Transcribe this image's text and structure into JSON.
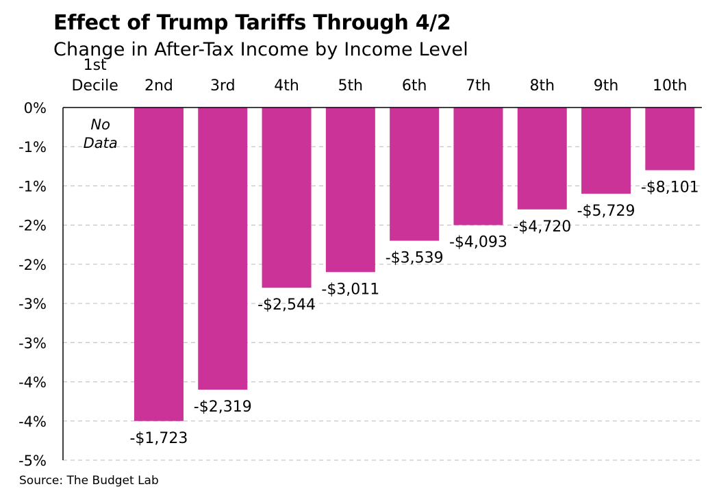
{
  "chart_data": {
    "type": "bar",
    "title": "Effect of Trump Tariffs Through 4/2",
    "subtitle": "Change in After-Tax Income by Income Level",
    "source": "Source: The Budget Lab",
    "categories": [
      "1st\nDecile",
      "2nd",
      "3rd",
      "4th",
      "5th",
      "6th",
      "7th",
      "8th",
      "9th",
      "10th"
    ],
    "values": [
      null,
      -4.0,
      -3.6,
      -2.3,
      -2.1,
      -1.7,
      -1.5,
      -1.3,
      -1.1,
      -0.8
    ],
    "data_labels": [
      "",
      "-$1,723",
      "-$2,319",
      "-$2,544",
      "-$3,011",
      "-$3,539",
      "-$4,093",
      "-$4,720",
      "-$5,729",
      "-$8,101"
    ],
    "no_data_label": "No\nData",
    "ylim": [
      -4.5,
      0
    ],
    "yticks": [
      0,
      -0.5,
      -1.0,
      -1.5,
      -2.0,
      -2.5,
      -3.0,
      -3.5,
      -4.0,
      -4.5
    ],
    "ytick_labels": [
      "0%",
      "-1%",
      "-1%",
      "-2%",
      "-2%",
      "-3%",
      "-3%",
      "-4%",
      "-4%",
      "-5%"
    ],
    "xlabel": "",
    "ylabel": "",
    "grid": true,
    "bar_color": "#cc3399"
  }
}
